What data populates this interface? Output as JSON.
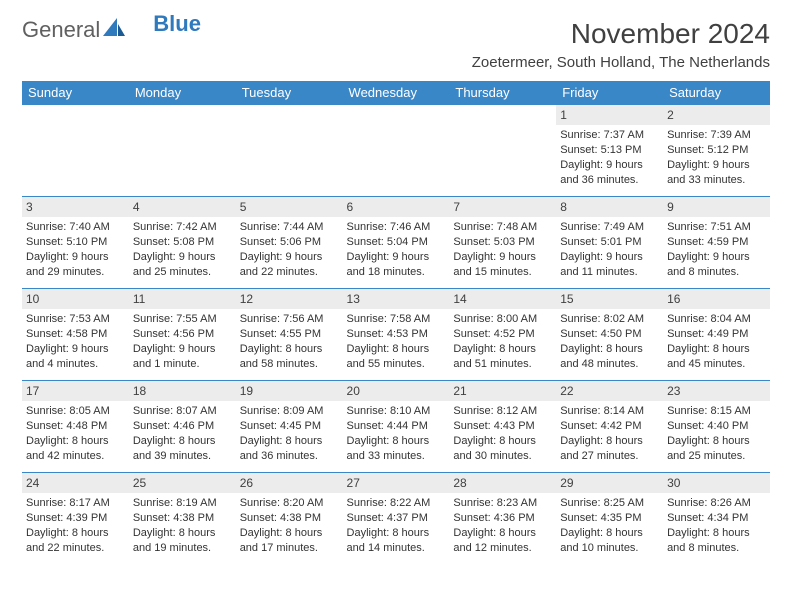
{
  "brand": {
    "part1": "General",
    "part2": "Blue"
  },
  "title": "November 2024",
  "location": "Zoetermeer, South Holland, The Netherlands",
  "colors": {
    "header_bg": "#3a87c8",
    "header_text": "#ffffff",
    "daynum_bg": "#ececec",
    "cell_border": "#3a87c8",
    "body_text": "#333333",
    "logo_gray": "#606060",
    "logo_blue": "#2f79bd",
    "page_bg": "#ffffff"
  },
  "typography": {
    "title_fontsize": 28,
    "location_fontsize": 15,
    "dayhead_fontsize": 13,
    "cell_fontsize": 11,
    "daynum_fontsize": 12
  },
  "day_headers": [
    "Sunday",
    "Monday",
    "Tuesday",
    "Wednesday",
    "Thursday",
    "Friday",
    "Saturday"
  ],
  "weeks": [
    [
      {
        "n": "",
        "lines": [
          "",
          "",
          "",
          ""
        ]
      },
      {
        "n": "",
        "lines": [
          "",
          "",
          "",
          ""
        ]
      },
      {
        "n": "",
        "lines": [
          "",
          "",
          "",
          ""
        ]
      },
      {
        "n": "",
        "lines": [
          "",
          "",
          "",
          ""
        ]
      },
      {
        "n": "",
        "lines": [
          "",
          "",
          "",
          ""
        ]
      },
      {
        "n": "1",
        "lines": [
          "Sunrise: 7:37 AM",
          "Sunset: 5:13 PM",
          "Daylight: 9 hours",
          "and 36 minutes."
        ]
      },
      {
        "n": "2",
        "lines": [
          "Sunrise: 7:39 AM",
          "Sunset: 5:12 PM",
          "Daylight: 9 hours",
          "and 33 minutes."
        ]
      }
    ],
    [
      {
        "n": "3",
        "lines": [
          "Sunrise: 7:40 AM",
          "Sunset: 5:10 PM",
          "Daylight: 9 hours",
          "and 29 minutes."
        ]
      },
      {
        "n": "4",
        "lines": [
          "Sunrise: 7:42 AM",
          "Sunset: 5:08 PM",
          "Daylight: 9 hours",
          "and 25 minutes."
        ]
      },
      {
        "n": "5",
        "lines": [
          "Sunrise: 7:44 AM",
          "Sunset: 5:06 PM",
          "Daylight: 9 hours",
          "and 22 minutes."
        ]
      },
      {
        "n": "6",
        "lines": [
          "Sunrise: 7:46 AM",
          "Sunset: 5:04 PM",
          "Daylight: 9 hours",
          "and 18 minutes."
        ]
      },
      {
        "n": "7",
        "lines": [
          "Sunrise: 7:48 AM",
          "Sunset: 5:03 PM",
          "Daylight: 9 hours",
          "and 15 minutes."
        ]
      },
      {
        "n": "8",
        "lines": [
          "Sunrise: 7:49 AM",
          "Sunset: 5:01 PM",
          "Daylight: 9 hours",
          "and 11 minutes."
        ]
      },
      {
        "n": "9",
        "lines": [
          "Sunrise: 7:51 AM",
          "Sunset: 4:59 PM",
          "Daylight: 9 hours",
          "and 8 minutes."
        ]
      }
    ],
    [
      {
        "n": "10",
        "lines": [
          "Sunrise: 7:53 AM",
          "Sunset: 4:58 PM",
          "Daylight: 9 hours",
          "and 4 minutes."
        ]
      },
      {
        "n": "11",
        "lines": [
          "Sunrise: 7:55 AM",
          "Sunset: 4:56 PM",
          "Daylight: 9 hours",
          "and 1 minute."
        ]
      },
      {
        "n": "12",
        "lines": [
          "Sunrise: 7:56 AM",
          "Sunset: 4:55 PM",
          "Daylight: 8 hours",
          "and 58 minutes."
        ]
      },
      {
        "n": "13",
        "lines": [
          "Sunrise: 7:58 AM",
          "Sunset: 4:53 PM",
          "Daylight: 8 hours",
          "and 55 minutes."
        ]
      },
      {
        "n": "14",
        "lines": [
          "Sunrise: 8:00 AM",
          "Sunset: 4:52 PM",
          "Daylight: 8 hours",
          "and 51 minutes."
        ]
      },
      {
        "n": "15",
        "lines": [
          "Sunrise: 8:02 AM",
          "Sunset: 4:50 PM",
          "Daylight: 8 hours",
          "and 48 minutes."
        ]
      },
      {
        "n": "16",
        "lines": [
          "Sunrise: 8:04 AM",
          "Sunset: 4:49 PM",
          "Daylight: 8 hours",
          "and 45 minutes."
        ]
      }
    ],
    [
      {
        "n": "17",
        "lines": [
          "Sunrise: 8:05 AM",
          "Sunset: 4:48 PM",
          "Daylight: 8 hours",
          "and 42 minutes."
        ]
      },
      {
        "n": "18",
        "lines": [
          "Sunrise: 8:07 AM",
          "Sunset: 4:46 PM",
          "Daylight: 8 hours",
          "and 39 minutes."
        ]
      },
      {
        "n": "19",
        "lines": [
          "Sunrise: 8:09 AM",
          "Sunset: 4:45 PM",
          "Daylight: 8 hours",
          "and 36 minutes."
        ]
      },
      {
        "n": "20",
        "lines": [
          "Sunrise: 8:10 AM",
          "Sunset: 4:44 PM",
          "Daylight: 8 hours",
          "and 33 minutes."
        ]
      },
      {
        "n": "21",
        "lines": [
          "Sunrise: 8:12 AM",
          "Sunset: 4:43 PM",
          "Daylight: 8 hours",
          "and 30 minutes."
        ]
      },
      {
        "n": "22",
        "lines": [
          "Sunrise: 8:14 AM",
          "Sunset: 4:42 PM",
          "Daylight: 8 hours",
          "and 27 minutes."
        ]
      },
      {
        "n": "23",
        "lines": [
          "Sunrise: 8:15 AM",
          "Sunset: 4:40 PM",
          "Daylight: 8 hours",
          "and 25 minutes."
        ]
      }
    ],
    [
      {
        "n": "24",
        "lines": [
          "Sunrise: 8:17 AM",
          "Sunset: 4:39 PM",
          "Daylight: 8 hours",
          "and 22 minutes."
        ]
      },
      {
        "n": "25",
        "lines": [
          "Sunrise: 8:19 AM",
          "Sunset: 4:38 PM",
          "Daylight: 8 hours",
          "and 19 minutes."
        ]
      },
      {
        "n": "26",
        "lines": [
          "Sunrise: 8:20 AM",
          "Sunset: 4:38 PM",
          "Daylight: 8 hours",
          "and 17 minutes."
        ]
      },
      {
        "n": "27",
        "lines": [
          "Sunrise: 8:22 AM",
          "Sunset: 4:37 PM",
          "Daylight: 8 hours",
          "and 14 minutes."
        ]
      },
      {
        "n": "28",
        "lines": [
          "Sunrise: 8:23 AM",
          "Sunset: 4:36 PM",
          "Daylight: 8 hours",
          "and 12 minutes."
        ]
      },
      {
        "n": "29",
        "lines": [
          "Sunrise: 8:25 AM",
          "Sunset: 4:35 PM",
          "Daylight: 8 hours",
          "and 10 minutes."
        ]
      },
      {
        "n": "30",
        "lines": [
          "Sunrise: 8:26 AM",
          "Sunset: 4:34 PM",
          "Daylight: 8 hours",
          "and 8 minutes."
        ]
      }
    ]
  ]
}
